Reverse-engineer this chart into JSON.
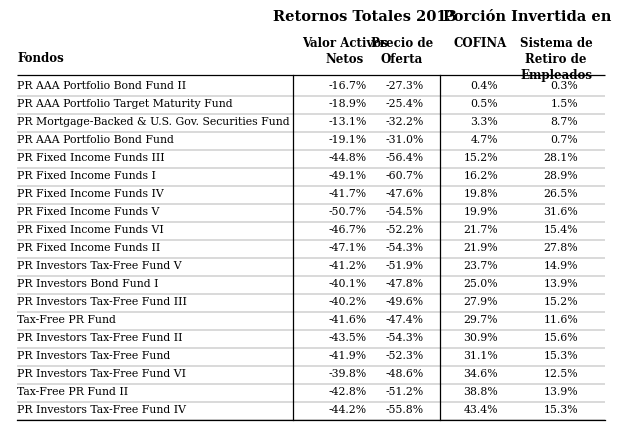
{
  "title1": "Retornos Totales 2013",
  "title2": "Porcín Invertida en",
  "col_headers_line1": [
    "Valor Activos",
    "Precio de",
    "COFINA",
    "Sistema de"
  ],
  "col_headers_line2": [
    "Netos",
    "Oferta",
    "",
    "Retiro de"
  ],
  "col_headers_line3": [
    "",
    "",
    "",
    "Empleados"
  ],
  "row_header": "Fondos",
  "funds": [
    "PR AAA Portfolio Bond Fund II",
    "PR AAA Portfolio Target Maturity Fund",
    "PR Mortgage-Backed & U.S. Gov. Securities Fund",
    "PR AAA Portfolio Bond Fund",
    "PR Fixed Income Funds III",
    "PR Fixed Income Funds I",
    "PR Fixed Income Funds IV",
    "PR Fixed Income Funds V",
    "PR Fixed Income Funds VI",
    "PR Fixed Income Funds II",
    "PR Investors Tax-Free Fund V",
    "PR Investors Bond Fund I",
    "PR Investors Tax-Free Fund III",
    "Tax-Free PR Fund",
    "PR Investors Tax-Free Fund II",
    "PR Investors Tax-Free Fund",
    "PR Investors Tax-Free Fund VI",
    "Tax-Free PR Fund II",
    "PR Investors Tax-Free Fund IV"
  ],
  "nav": [
    "-16.7%",
    "-18.9%",
    "-13.1%",
    "-19.1%",
    "-44.8%",
    "-49.1%",
    "-41.7%",
    "-50.7%",
    "-46.7%",
    "-47.1%",
    "-41.2%",
    "-40.1%",
    "-40.2%",
    "-41.6%",
    "-43.5%",
    "-41.9%",
    "-39.8%",
    "-42.8%",
    "-44.2%"
  ],
  "bid": [
    "-27.3%",
    "-25.4%",
    "-32.2%",
    "-31.0%",
    "-56.4%",
    "-60.7%",
    "-47.6%",
    "-54.5%",
    "-52.2%",
    "-54.3%",
    "-51.9%",
    "-47.8%",
    "-49.6%",
    "-47.4%",
    "-54.3%",
    "-52.3%",
    "-48.6%",
    "-51.2%",
    "-55.8%"
  ],
  "cofina": [
    "0.4%",
    "0.5%",
    "3.3%",
    "4.7%",
    "15.2%",
    "16.2%",
    "19.8%",
    "19.9%",
    "21.7%",
    "21.9%",
    "23.7%",
    "25.0%",
    "27.9%",
    "29.7%",
    "30.9%",
    "31.1%",
    "34.6%",
    "38.8%",
    "43.4%"
  ],
  "retirement": [
    "0.3%",
    "1.5%",
    "8.7%",
    "0.7%",
    "28.1%",
    "28.9%",
    "26.5%",
    "31.6%",
    "15.4%",
    "27.8%",
    "14.9%",
    "13.9%",
    "15.2%",
    "11.6%",
    "15.6%",
    "15.3%",
    "12.5%",
    "13.9%",
    "15.3%"
  ],
  "bg_color": "#ffffff",
  "text_color": "#000000",
  "header_fontsize": 8.5,
  "row_fontsize": 7.8,
  "title_fontsize": 10.5
}
